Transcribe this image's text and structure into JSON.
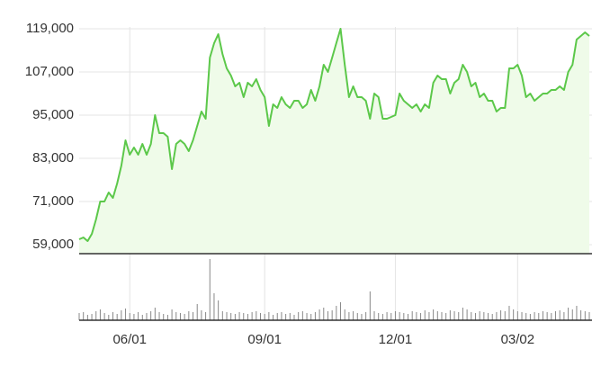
{
  "chart_data": {
    "type": "line",
    "categories": [
      null,
      null,
      null,
      null,
      null,
      null,
      null,
      null,
      null,
      null,
      null,
      null,
      "06/01",
      null,
      null,
      null,
      null,
      null,
      null,
      null,
      null,
      null,
      null,
      null,
      null,
      null,
      null,
      null,
      null,
      null,
      null,
      null,
      null,
      null,
      null,
      null,
      null,
      null,
      null,
      null,
      null,
      null,
      null,
      null,
      "09/01",
      null,
      null,
      null,
      null,
      null,
      null,
      null,
      null,
      null,
      null,
      null,
      null,
      null,
      null,
      null,
      null,
      null,
      null,
      null,
      null,
      null,
      null,
      null,
      null,
      null,
      null,
      null,
      null,
      null,
      null,
      "12/01",
      null,
      null,
      null,
      null,
      null,
      null,
      null,
      null,
      null,
      null,
      null,
      null,
      null,
      null,
      null,
      null,
      null,
      null,
      null,
      null,
      null,
      null,
      null,
      null,
      null,
      null,
      null,
      null,
      "03/02",
      null,
      null,
      null,
      null,
      null,
      null,
      null,
      null,
      null,
      null,
      null,
      null,
      null,
      null,
      null,
      null,
      null
    ],
    "series": [
      {
        "color": "#5cc84a",
        "values": [
          60500,
          61000,
          60000,
          62000,
          66000,
          71000,
          71000,
          73500,
          72000,
          76000,
          81000,
          88000,
          84000,
          86000,
          84000,
          87000,
          84000,
          87000,
          95000,
          90000,
          90000,
          89000,
          80000,
          87000,
          88000,
          87000,
          85000,
          88000,
          92000,
          96000,
          94000,
          111000,
          115000,
          117500,
          112000,
          108000,
          106000,
          103000,
          104000,
          100000,
          104000,
          103000,
          105000,
          102000,
          100000,
          92000,
          98000,
          97000,
          100000,
          98000,
          97000,
          99000,
          99000,
          97000,
          98000,
          102000,
          99000,
          103000,
          109000,
          107000,
          111000,
          115000,
          119000,
          109000,
          100000,
          103000,
          100000,
          100000,
          99000,
          94000,
          101000,
          100000,
          94000,
          94000,
          94500,
          95000,
          101000,
          99000,
          98000,
          97000,
          98000,
          96000,
          98000,
          97000,
          104000,
          106000,
          105000,
          105000,
          101000,
          104000,
          105000,
          109000,
          107000,
          103000,
          104000,
          100000,
          101000,
          99000,
          99000,
          96000,
          97000,
          97000,
          108000,
          108000,
          109000,
          106000,
          100000,
          101000,
          99000,
          100000,
          101000,
          101000,
          102000,
          102000,
          103000,
          102000,
          107000,
          109000,
          116000,
          117000,
          118000,
          117000
        ]
      },
      {
        "color": "#888888",
        "values": [
          8,
          9,
          6,
          7,
          10,
          12,
          8,
          6,
          9,
          7,
          11,
          13,
          8,
          7,
          9,
          6,
          8,
          10,
          14,
          9,
          7,
          6,
          12,
          9,
          8,
          7,
          10,
          9,
          18,
          11,
          9,
          68,
          30,
          22,
          10,
          9,
          8,
          7,
          9,
          8,
          7,
          9,
          10,
          8,
          7,
          9,
          6,
          8,
          9,
          7,
          8,
          6,
          9,
          10,
          8,
          7,
          9,
          12,
          14,
          10,
          11,
          16,
          20,
          12,
          9,
          10,
          8,
          7,
          9,
          32,
          10,
          8,
          7,
          9,
          8,
          10,
          9,
          8,
          7,
          10,
          9,
          8,
          11,
          9,
          12,
          10,
          9,
          8,
          11,
          10,
          9,
          14,
          12,
          9,
          8,
          10,
          9,
          8,
          7,
          9,
          11,
          10,
          16,
          12,
          10,
          9,
          8,
          7,
          9,
          8,
          10,
          9,
          8,
          10,
          11,
          9,
          14,
          12,
          16,
          11,
          10,
          9
        ]
      }
    ],
    "ylim": [
      56500,
      119500
    ],
    "yticks": [
      {
        "value": 59000,
        "label": "59,000"
      },
      {
        "value": 71000,
        "label": "71,000"
      },
      {
        "value": 83000,
        "label": "83,000"
      },
      {
        "value": 95000,
        "label": "95,000"
      },
      {
        "value": 107000,
        "label": "107,000"
      },
      {
        "value": 119000,
        "label": "119,000"
      }
    ],
    "fill": "#effbe9",
    "grid": true
  }
}
